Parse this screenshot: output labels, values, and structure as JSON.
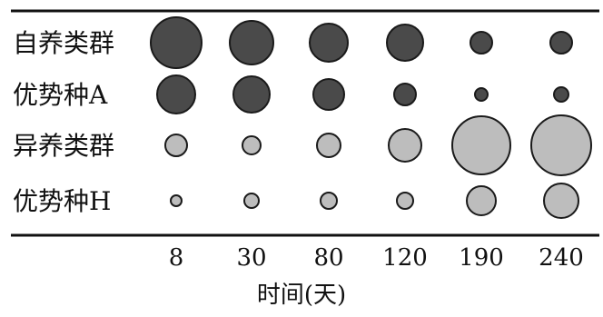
{
  "chart_data": {
    "type": "scatter",
    "chart_kind": "bubble-matrix",
    "xlabel": "时间(天)",
    "x_ticks": [
      "8",
      "30",
      "80",
      "120",
      "190",
      "240"
    ],
    "rows": [
      "自养类群",
      "优势种A",
      "异养类群",
      "优势种H"
    ],
    "size_unit": "relative circle radius (estimated, no values printed)",
    "series": [
      {
        "row": "自养类群",
        "values": [
          28,
          24,
          21,
          20,
          12,
          12
        ],
        "color": "#4a4a4a"
      },
      {
        "row": "优势种A",
        "values": [
          21,
          20,
          17,
          12,
          7,
          8
        ],
        "color": "#4a4a4a"
      },
      {
        "row": "异养类群",
        "values": [
          12,
          10,
          13,
          18,
          32,
          33
        ],
        "color": "#bdbdbd"
      },
      {
        "row": "优势种H",
        "values": [
          6,
          8,
          9,
          9,
          16,
          19
        ],
        "color": "#bdbdbd"
      }
    ],
    "grid": false,
    "legend": "none"
  }
}
